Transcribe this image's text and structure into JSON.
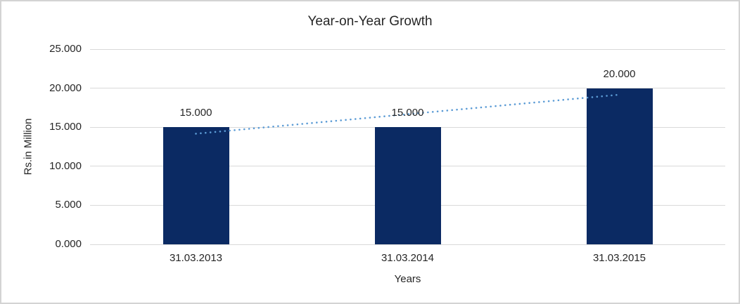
{
  "chart_data": {
    "type": "bar",
    "title": "Year-on-Year Growth",
    "xlabel": "Years",
    "ylabel": "Rs.in Million",
    "categories": [
      "31.03.2013",
      "31.03.2014",
      "31.03.2015"
    ],
    "values": [
      15,
      15,
      20
    ],
    "value_labels": [
      "15.000",
      "15.000",
      "20.000"
    ],
    "ytick_values": [
      0,
      5,
      10,
      15,
      20,
      25
    ],
    "ytick_labels": [
      "0.000",
      "5.000",
      "10.000",
      "15.000",
      "20.000",
      "25.000"
    ],
    "ylim": [
      0,
      25
    ],
    "grid": true,
    "legend": "none",
    "bar_color": "#0b2a63",
    "gridline_color": "#d9d9d9",
    "text_color": "#262626",
    "trendline": {
      "type": "linear",
      "style": "dotted",
      "color": "#5b9bd5",
      "start_value": 14.167,
      "end_value": 19.167
    }
  }
}
